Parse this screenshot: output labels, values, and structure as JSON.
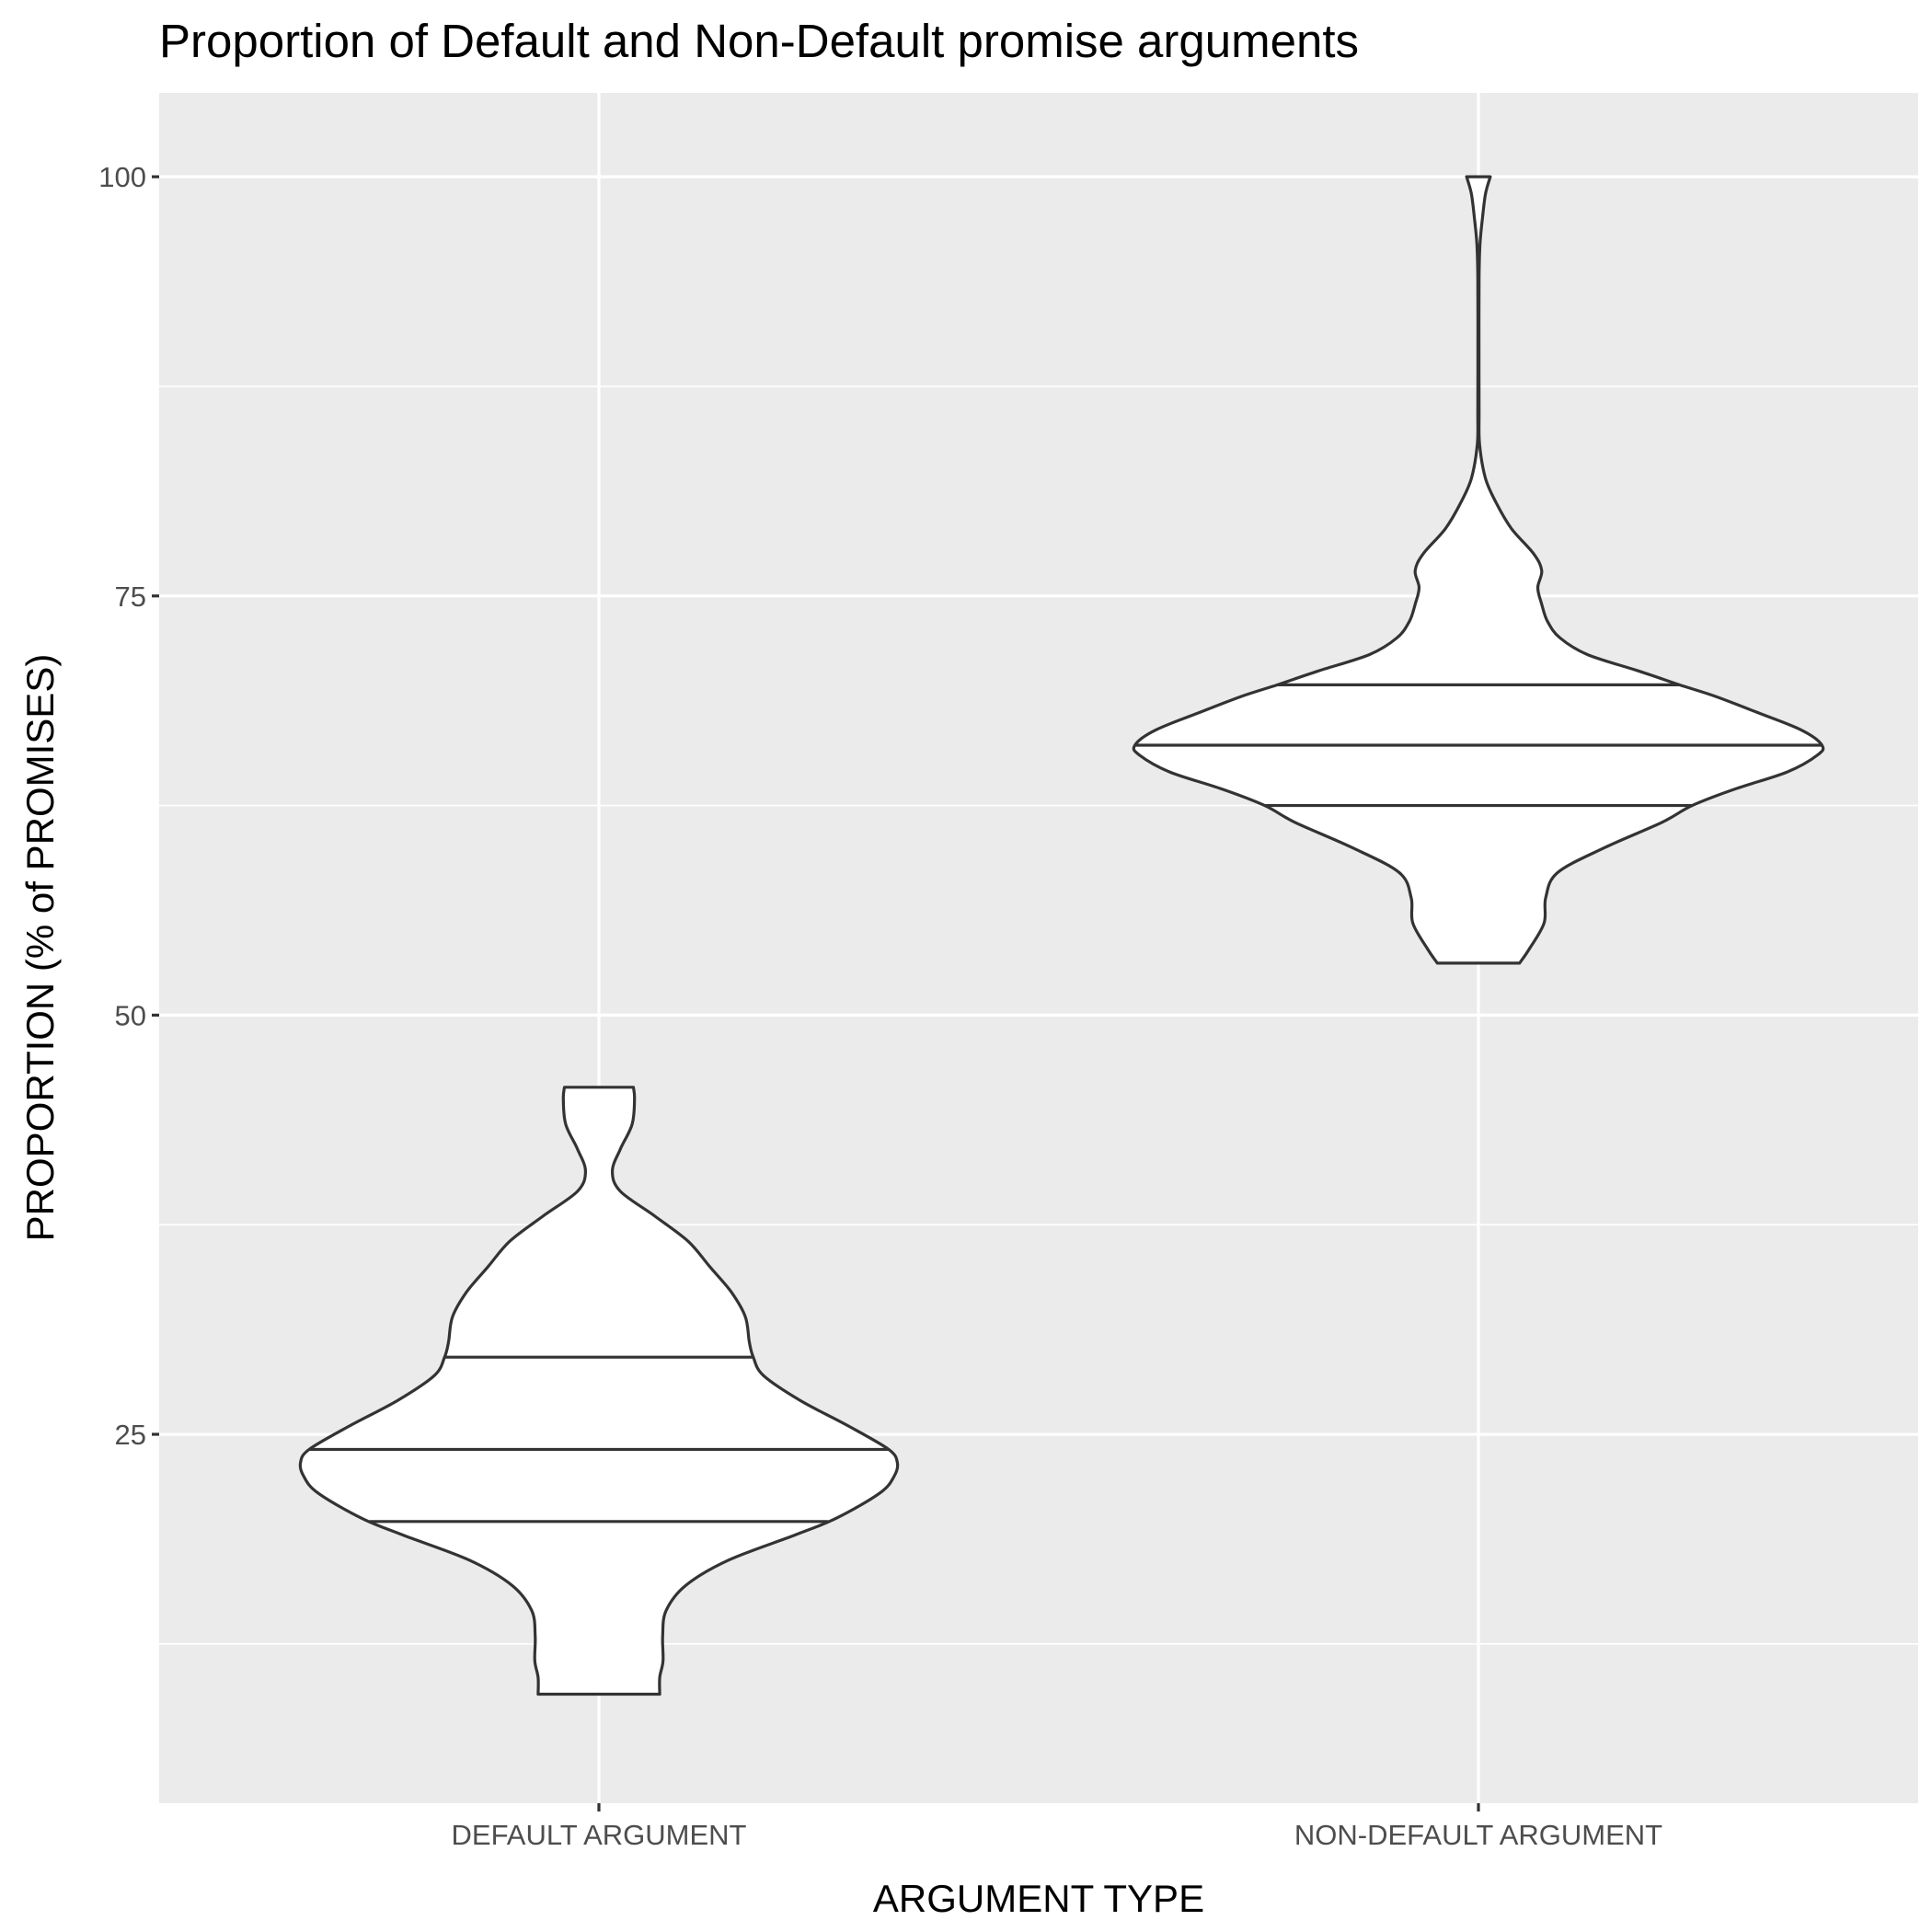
{
  "chart_data": {
    "type": "violin",
    "title": "Proportion of Default and Non-Default promise arguments",
    "xlabel": "ARGUMENT TYPE",
    "ylabel": "PROPORTION (% of PROMISES)",
    "ylim": [
      3,
      105
    ],
    "yticks": [
      25,
      50,
      75,
      100
    ],
    "ytick_labels": [
      "25",
      "50",
      "75",
      "100"
    ],
    "grid": true,
    "categories": [
      "DEFAULT ARGUMENT",
      "NON-DEFAULT ARGUMENT"
    ],
    "series": [
      {
        "category": "DEFAULT ARGUMENT",
        "min": 9.5,
        "max": 45.7,
        "quantiles": [
          19.8,
          24.1,
          29.6
        ],
        "profile": [
          [
            9.5,
            0.0768
          ],
          [
            10.5,
            0.0768
          ],
          [
            11.5,
            0.081
          ],
          [
            13.0,
            0.0805
          ],
          [
            14.5,
            0.085
          ],
          [
            16.0,
            0.11
          ],
          [
            17.5,
            0.164
          ],
          [
            19.0,
            0.248
          ],
          [
            20.0,
            0.3
          ],
          [
            21.5,
            0.355
          ],
          [
            22.5,
            0.373
          ],
          [
            23.3,
            0.377
          ],
          [
            24.1,
            0.366
          ],
          [
            25.5,
            0.315
          ],
          [
            27.0,
            0.255
          ],
          [
            28.5,
            0.208
          ],
          [
            29.6,
            0.195
          ],
          [
            30.5,
            0.19
          ],
          [
            32.0,
            0.185
          ],
          [
            33.5,
            0.167
          ],
          [
            35.0,
            0.14
          ],
          [
            36.5,
            0.113
          ],
          [
            38.0,
            0.071
          ],
          [
            39.5,
            0.027
          ],
          [
            40.7,
            0.017
          ],
          [
            42.0,
            0.027
          ],
          [
            43.5,
            0.042
          ],
          [
            45.0,
            0.045
          ],
          [
            45.7,
            0.0436
          ]
        ]
      },
      {
        "category": "NON-DEFAULT ARGUMENT",
        "min": 53.1,
        "max": 100.0,
        "quantiles": [
          62.5,
          66.1,
          69.7
        ],
        "profile": [
          [
            53.1,
            0.052
          ],
          [
            54.0,
            0.065
          ],
          [
            55.5,
            0.083
          ],
          [
            57.0,
            0.085
          ],
          [
            58.5,
            0.1
          ],
          [
            60.0,
            0.16
          ],
          [
            61.5,
            0.232
          ],
          [
            62.5,
            0.27
          ],
          [
            63.5,
            0.325
          ],
          [
            64.5,
            0.39
          ],
          [
            65.5,
            0.428
          ],
          [
            66.1,
            0.434
          ],
          [
            67.0,
            0.408
          ],
          [
            68.0,
            0.355
          ],
          [
            69.0,
            0.3
          ],
          [
            69.7,
            0.254
          ],
          [
            70.5,
            0.204
          ],
          [
            71.5,
            0.138
          ],
          [
            72.5,
            0.103
          ],
          [
            73.5,
            0.087
          ],
          [
            74.5,
            0.08
          ],
          [
            75.5,
            0.075
          ],
          [
            76.5,
            0.08
          ],
          [
            77.5,
            0.07
          ],
          [
            79.0,
            0.042
          ],
          [
            80.5,
            0.023
          ],
          [
            82.0,
            0.009
          ],
          [
            84.0,
            0.0015
          ],
          [
            86.0,
            0.0008
          ],
          [
            90.0,
            0.0007
          ],
          [
            94.0,
            0.0008
          ],
          [
            96.0,
            0.002
          ],
          [
            97.5,
            0.005
          ],
          [
            99.0,
            0.009
          ],
          [
            100.0,
            0.015
          ]
        ]
      }
    ]
  }
}
